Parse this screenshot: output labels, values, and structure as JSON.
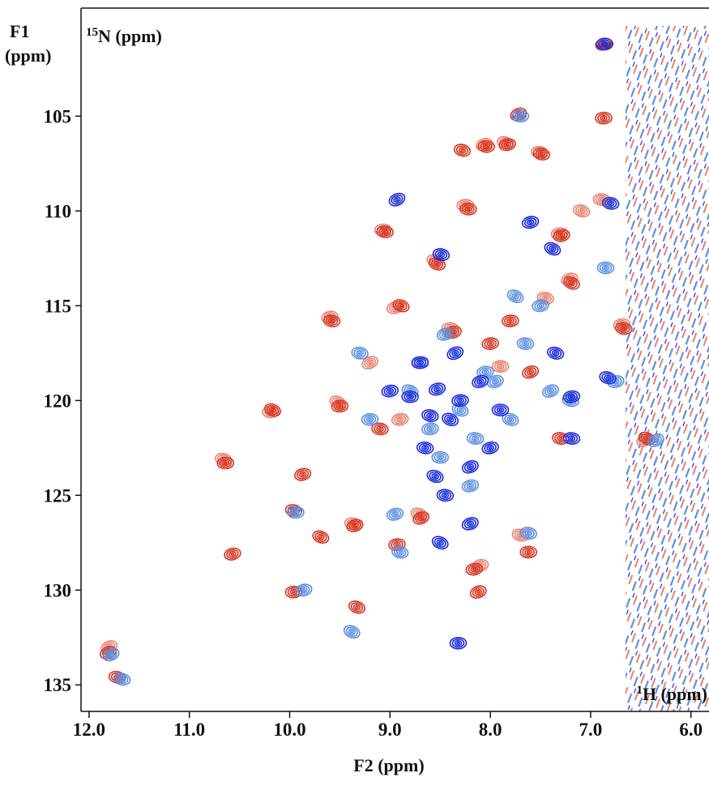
{
  "chart_data": {
    "type": "contour",
    "xlabel": "F2 (ppm)",
    "ylabel": [
      "F1",
      "(ppm)"
    ],
    "x_nucleus": {
      "mass": "1",
      "text": "H (ppm)"
    },
    "y_nucleus": {
      "mass": "15",
      "text": "N (ppm)"
    },
    "xlim": [
      12.08,
      5.82
    ],
    "ylim": [
      99.3,
      136.4
    ],
    "xticks": [
      {
        "value": 12,
        "label": "12.0"
      },
      {
        "value": 11,
        "label": "11.0"
      },
      {
        "value": 10,
        "label": "10.0"
      },
      {
        "value": 9,
        "label": "9.0"
      },
      {
        "value": 8,
        "label": "8.0"
      },
      {
        "value": 7,
        "label": "7.0"
      },
      {
        "value": 6,
        "label": "6.0"
      }
    ],
    "yticks": [
      105,
      110,
      115,
      120,
      125,
      130,
      135
    ],
    "grid": false,
    "series": [
      {
        "color": "#e8806e",
        "x": [
          11.8,
          10.66,
          10.19,
          9.6,
          9.52,
          9.37,
          9.07,
          8.95,
          8.71,
          8.55,
          8.25,
          8.06,
          7.85,
          7.51,
          7.31,
          7.21,
          7.09,
          6.89,
          6.69,
          6.46,
          7.7,
          8.4,
          8.9,
          9.2,
          7.45,
          7.9,
          8.1
        ],
        "values": [
          133.0,
          123.1,
          120.6,
          115.6,
          120.1,
          126.5,
          111.0,
          115.1,
          126.0,
          112.6,
          109.7,
          106.5,
          106.4,
          106.9,
          111.2,
          113.6,
          110.0,
          109.4,
          116.0,
          122.1,
          127.1,
          116.2,
          121.0,
          118.0,
          114.6,
          118.2,
          128.7
        ]
      },
      {
        "color": "#d6321f",
        "x": [
          11.81,
          11.72,
          10.64,
          10.57,
          10.17,
          9.96,
          9.96,
          9.87,
          9.69,
          9.58,
          9.5,
          9.35,
          9.33,
          9.05,
          8.93,
          8.69,
          8.53,
          8.22,
          8.16,
          8.12,
          8.28,
          8.04,
          7.83,
          7.72,
          7.49,
          7.62,
          7.29,
          7.19,
          7.3,
          6.87,
          6.87,
          6.44,
          6.67,
          7.8,
          8.37,
          8.89,
          9.1,
          8.0,
          7.6
        ],
        "values": [
          133.3,
          134.6,
          123.3,
          128.1,
          120.5,
          125.8,
          130.1,
          123.9,
          127.2,
          115.8,
          120.3,
          126.6,
          130.9,
          111.1,
          127.6,
          126.2,
          112.8,
          109.9,
          128.9,
          130.1,
          106.8,
          106.6,
          106.5,
          104.9,
          107.0,
          128.0,
          111.3,
          113.8,
          122.0,
          105.1,
          101.2,
          122.0,
          116.2,
          115.8,
          116.4,
          115.0,
          121.5,
          117.0,
          118.5
        ]
      },
      {
        "color": "#5b8fe0",
        "x": [
          11.78,
          11.67,
          9.94,
          9.86,
          9.38,
          9.3,
          9.2,
          8.95,
          8.8,
          8.7,
          8.6,
          8.45,
          8.3,
          8.15,
          8.05,
          7.95,
          7.8,
          7.65,
          7.5,
          7.4,
          7.2,
          6.85,
          6.75,
          6.35,
          8.9,
          8.5,
          8.2,
          7.75,
          7.62,
          7.7
        ],
        "values": [
          133.4,
          134.7,
          125.9,
          130.0,
          132.2,
          117.5,
          121.0,
          126.0,
          119.5,
          118.0,
          121.5,
          116.5,
          120.5,
          122.0,
          118.5,
          119.0,
          121.0,
          117.0,
          115.0,
          119.5,
          120.0,
          113.0,
          119.0,
          122.1,
          128.0,
          123.0,
          124.5,
          114.5,
          127.0,
          105.0
        ]
      },
      {
        "color": "#1a2bd8",
        "x": [
          8.93,
          8.49,
          8.32,
          7.6,
          7.38,
          6.8,
          6.86,
          8.53,
          8.4,
          8.65,
          8.3,
          8.1,
          8.55,
          8.45,
          8.7,
          8.2,
          6.83,
          7.19,
          7.19,
          8.2,
          7.35,
          8.8,
          9.0,
          8.35,
          8.6,
          7.9,
          8.0,
          8.5
        ],
        "values": [
          109.4,
          112.3,
          132.8,
          110.6,
          112.0,
          109.6,
          101.2,
          119.4,
          121.0,
          122.5,
          120.0,
          119.0,
          124.0,
          125.0,
          118.0,
          126.5,
          118.8,
          122.0,
          119.8,
          123.5,
          117.5,
          119.8,
          119.5,
          117.5,
          120.8,
          120.5,
          122.5,
          127.5
        ]
      }
    ]
  }
}
